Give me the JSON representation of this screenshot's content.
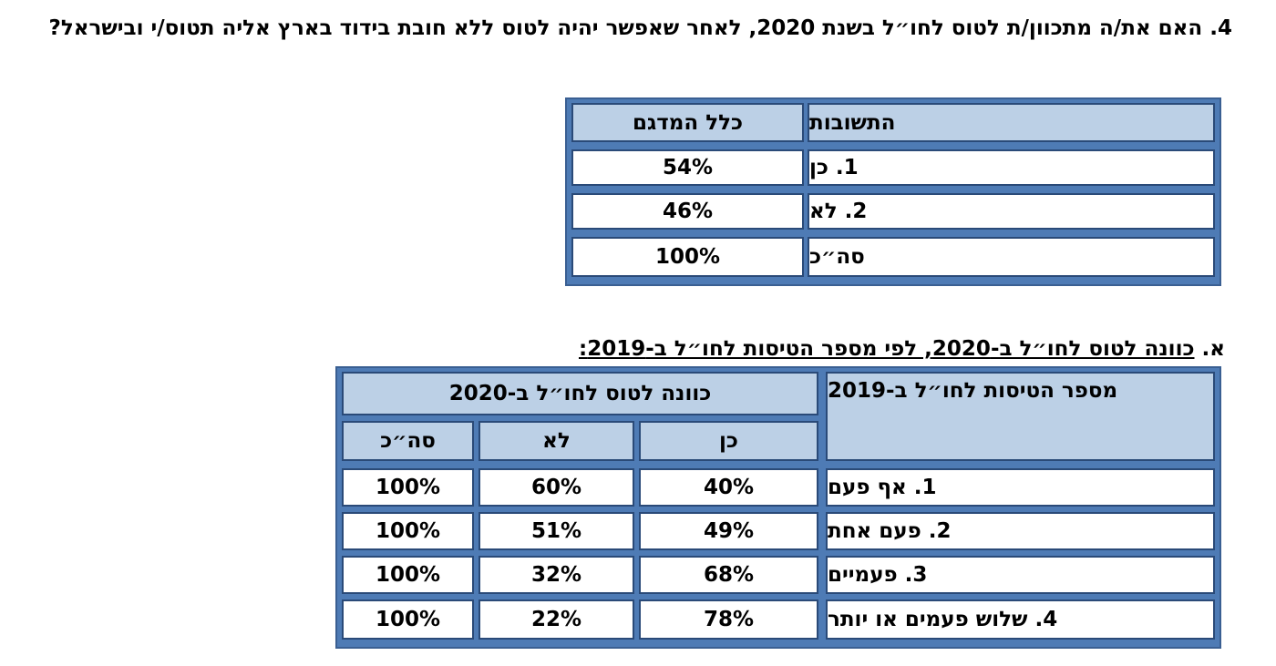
{
  "question": "4. האם את/ה מתכוון/ת לטוס לחו״ל בשנת 2020, לאחר שאפשר יהיה לטוס ללא חובת בידוד בארץ אליה תטוס/י ובישראל?",
  "table1": {
    "headers": {
      "answers": "התשובות",
      "total_sample": "כלל המדגם"
    },
    "rows": [
      {
        "label": "1. כן",
        "value": "54%"
      },
      {
        "label": "2. לא",
        "value": "46%"
      },
      {
        "label": "סה״כ",
        "value": "100%"
      }
    ]
  },
  "subtitle": {
    "prefix": "א.",
    "text": "כוונה לטוס לחו״ל ב-2020, לפי מספר הטיסות לחו״ל ב-2019:"
  },
  "table2": {
    "headers": {
      "flights_2019": "מספר הטיסות לחו״ל ב-2019",
      "intent_2020": "כוונה לטוס לחו״ל ב-2020",
      "yes": "כן",
      "no": "לא",
      "total": "סה״כ"
    },
    "rows": [
      {
        "label": "1. אף פעם",
        "yes": "40%",
        "no": "60%",
        "total": "100%"
      },
      {
        "label": "2. פעם אחת",
        "yes": "49%",
        "no": "51%",
        "total": "100%"
      },
      {
        "label": "3. פעמיים",
        "yes": "68%",
        "no": "32%",
        "total": "100%"
      },
      {
        "label": "4. שלוש פעמים או יותר",
        "yes": "78%",
        "no": "22%",
        "total": "100%"
      }
    ]
  }
}
